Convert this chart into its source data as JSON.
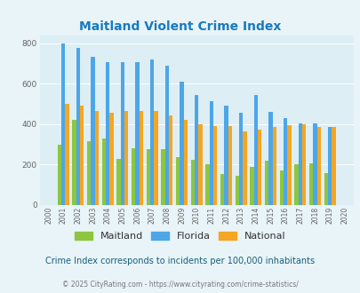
{
  "title": "Maitland Violent Crime Index",
  "years": [
    2000,
    2001,
    2002,
    2003,
    2004,
    2005,
    2006,
    2007,
    2008,
    2009,
    2010,
    2011,
    2012,
    2013,
    2014,
    2015,
    2016,
    2017,
    2018,
    2019,
    2020
  ],
  "maitland": [
    0,
    300,
    420,
    315,
    330,
    230,
    280,
    275,
    275,
    235,
    225,
    200,
    155,
    145,
    190,
    220,
    170,
    200,
    205,
    158,
    0
  ],
  "florida": [
    0,
    800,
    775,
    735,
    705,
    705,
    705,
    720,
    690,
    610,
    545,
    515,
    490,
    455,
    545,
    460,
    430,
    405,
    405,
    385,
    0
  ],
  "national": [
    0,
    500,
    490,
    465,
    455,
    465,
    465,
    465,
    445,
    420,
    400,
    390,
    390,
    365,
    375,
    385,
    395,
    400,
    385,
    385,
    0
  ],
  "maitland_color": "#8dc63f",
  "florida_color": "#4da6e8",
  "national_color": "#f5a623",
  "bg_color": "#e8f4f8",
  "plot_bg": "#ddeef5",
  "ylim": [
    0,
    840
  ],
  "yticks": [
    0,
    200,
    400,
    600,
    800
  ],
  "subtitle": "Crime Index corresponds to incidents per 100,000 inhabitants",
  "footer": "© 2025 CityRating.com - https://www.cityrating.com/crime-statistics/",
  "title_color": "#1a7abd",
  "subtitle_color": "#1a5f7a",
  "footer_color": "#777777",
  "legend_text_color": "#333333",
  "bar_width": 0.26,
  "grid_color": "#ffffff"
}
